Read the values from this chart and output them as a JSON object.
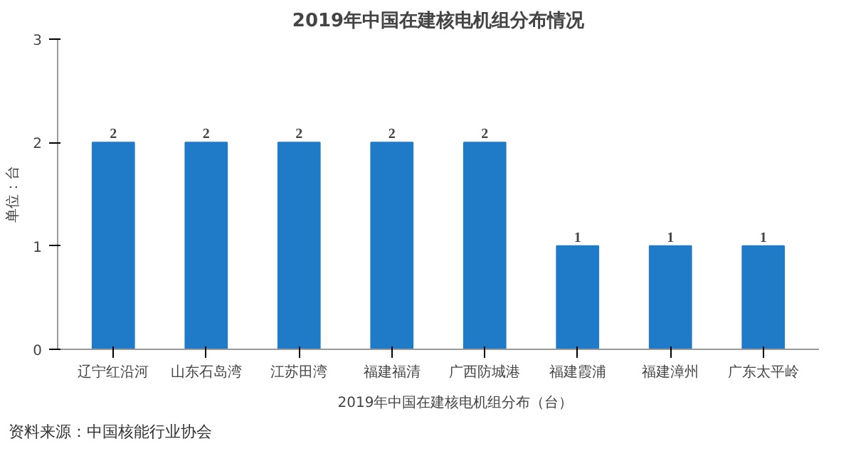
{
  "chart_data": {
    "type": "bar",
    "title": "2019年中国在建核电机组分布情况",
    "ylabel": "单位：台",
    "categories": [
      "辽宁红沿河",
      "山东石岛湾",
      "江苏田湾",
      "福建福清",
      "广西防城港",
      "福建霞浦",
      "福建漳州",
      "广东太平岭"
    ],
    "series": [
      {
        "name": "2019年中国在建核电机组分布（台）",
        "color": "#1f7bc8",
        "values": [
          2,
          2,
          2,
          2,
          2,
          1,
          1,
          1
        ]
      }
    ],
    "ylim": [
      0,
      3
    ],
    "yticks": [
      0,
      1,
      2,
      3
    ],
    "grid": false,
    "legend": "bottom",
    "data_labels": true,
    "annotations": [
      "资料来源：中国核能行业协会"
    ]
  }
}
